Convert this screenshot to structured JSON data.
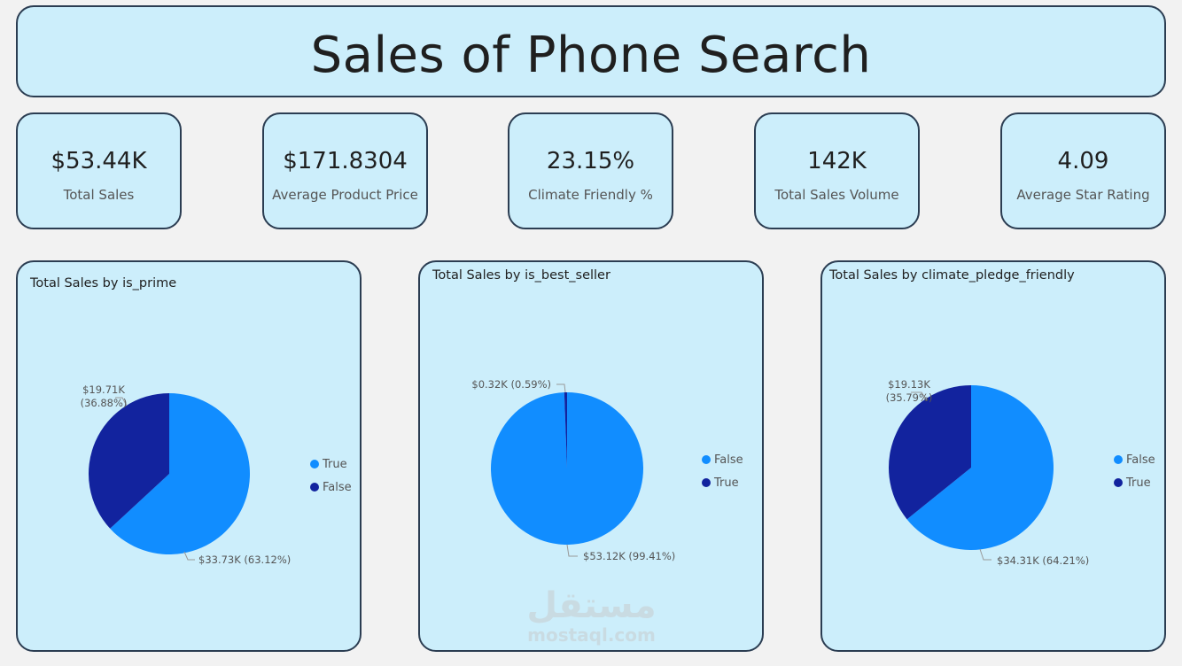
{
  "header": {
    "title": "Sales of Phone Search"
  },
  "kpis": [
    {
      "value": "$53.44K",
      "label": "Total Sales"
    },
    {
      "value": "$171.8304",
      "label": "Average Product Price"
    },
    {
      "value": "23.15%",
      "label": "Climate Friendly %"
    },
    {
      "value": "142K",
      "label": "Total Sales Volume"
    },
    {
      "value": "4.09",
      "label": "Average Star Rating"
    }
  ],
  "colors": {
    "light_blue": "#118dff",
    "dark_blue": "#12239e",
    "card_bg": "#cceefb",
    "card_border": "#2b3d52"
  },
  "chart_data": [
    {
      "type": "pie",
      "title": "Total Sales by is_prime",
      "slices": [
        {
          "name": "True",
          "value": 33.73,
          "percent": 63.12,
          "color": "#118dff",
          "label": "$33.73K (63.12%)"
        },
        {
          "name": "False",
          "value": 19.71,
          "percent": 36.88,
          "color": "#12239e",
          "label": "$19.71K (36.88%)"
        }
      ],
      "legend": [
        "True",
        "False"
      ],
      "legend_position": "right"
    },
    {
      "type": "pie",
      "title": "Total Sales by is_best_seller",
      "slices": [
        {
          "name": "False",
          "value": 53.12,
          "percent": 99.41,
          "color": "#118dff",
          "label": "$53.12K (99.41%)"
        },
        {
          "name": "True",
          "value": 0.32,
          "percent": 0.59,
          "color": "#12239e",
          "label": "$0.32K (0.59%)"
        }
      ],
      "legend": [
        "False",
        "True"
      ],
      "legend_position": "right"
    },
    {
      "type": "pie",
      "title": "Total Sales by climate_pledge_friendly",
      "slices": [
        {
          "name": "False",
          "value": 34.31,
          "percent": 64.21,
          "color": "#118dff",
          "label": "$34.31K (64.21%)"
        },
        {
          "name": "True",
          "value": 19.13,
          "percent": 35.79,
          "color": "#12239e",
          "label": "$19.13K (35.79%)"
        }
      ],
      "legend": [
        "False",
        "True"
      ],
      "legend_position": "right"
    }
  ],
  "watermark": {
    "arabic": "مستقل",
    "site": "mostaql.com"
  }
}
